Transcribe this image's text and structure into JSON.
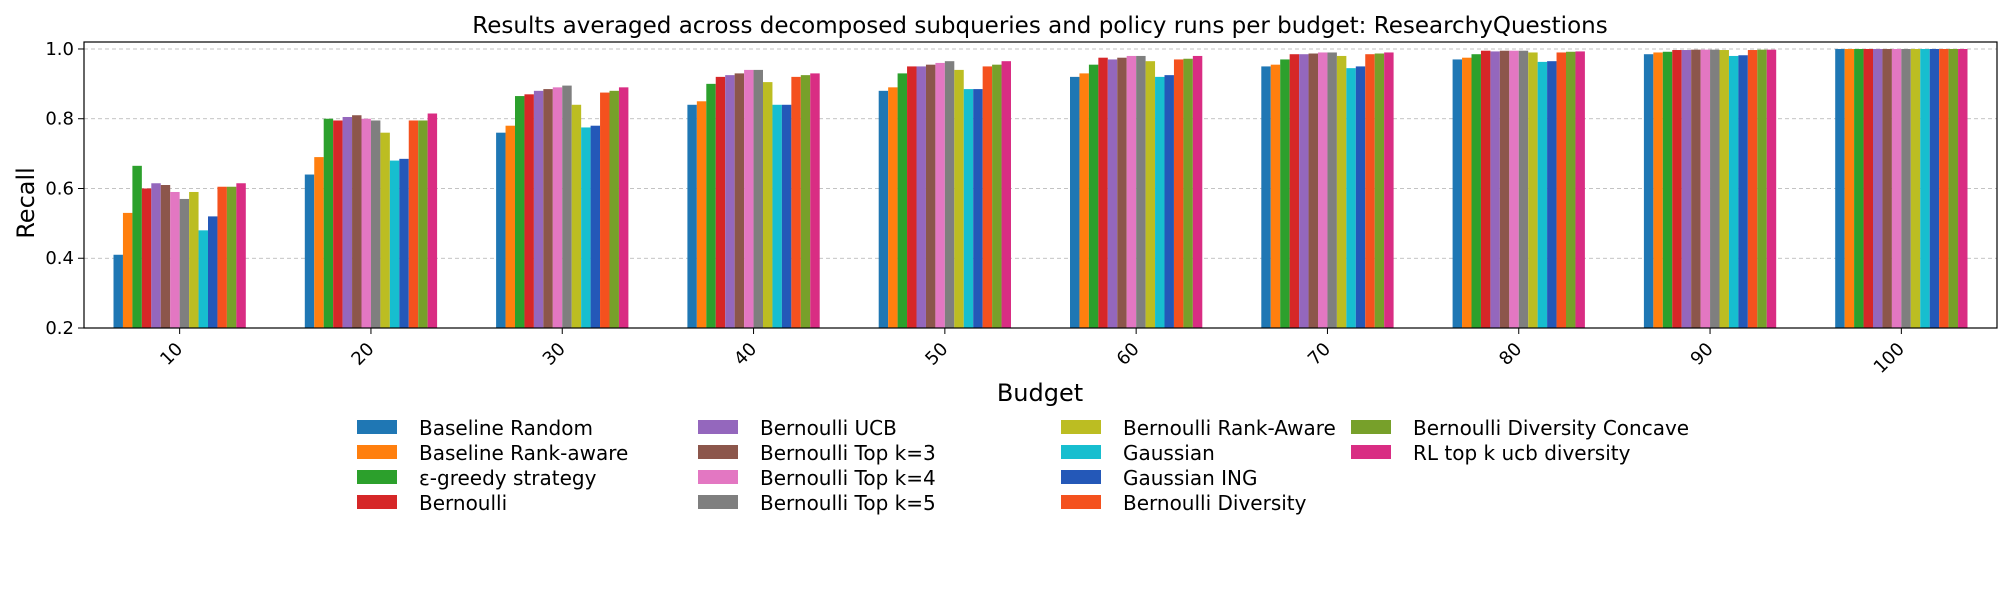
{
  "chart_data": {
    "type": "bar",
    "title": "Results averaged across decomposed subqueries and policy runs per budget: ResearchyQuestions",
    "xlabel": "Budget",
    "ylabel": "Recall",
    "ylim": [
      0.2,
      1.02
    ],
    "yticks": [
      "0.2",
      "0.4",
      "0.6",
      "0.8",
      "1.0"
    ],
    "grid": "horizontal dashed",
    "legend_position": "bottom",
    "categories": [
      "10",
      "20",
      "30",
      "40",
      "50",
      "60",
      "70",
      "80",
      "90",
      "100"
    ],
    "series": [
      {
        "name": "Baseline Random",
        "color": "#1f77b4",
        "values": [
          0.41,
          0.64,
          0.76,
          0.84,
          0.88,
          0.92,
          0.95,
          0.97,
          0.985,
          1.0
        ]
      },
      {
        "name": "Baseline Rank-aware",
        "color": "#ff7f0e",
        "values": [
          0.53,
          0.69,
          0.78,
          0.85,
          0.89,
          0.93,
          0.955,
          0.975,
          0.99,
          1.0
        ]
      },
      {
        "name": "ε-greedy strategy",
        "color": "#2ca02c",
        "values": [
          0.665,
          0.8,
          0.865,
          0.9,
          0.93,
          0.955,
          0.97,
          0.985,
          0.992,
          1.0
        ]
      },
      {
        "name": "Bernoulli",
        "color": "#d62728",
        "values": [
          0.6,
          0.795,
          0.87,
          0.92,
          0.95,
          0.975,
          0.985,
          0.995,
          0.997,
          1.0
        ]
      },
      {
        "name": "Bernoulli UCB",
        "color": "#9467bd",
        "values": [
          0.615,
          0.805,
          0.88,
          0.925,
          0.95,
          0.97,
          0.985,
          0.993,
          0.997,
          1.0
        ]
      },
      {
        "name": "Bernoulli Top k=3",
        "color": "#8c564b",
        "values": [
          0.61,
          0.81,
          0.885,
          0.93,
          0.955,
          0.975,
          0.987,
          0.995,
          0.998,
          1.0
        ]
      },
      {
        "name": "Bernoulli Top k=4",
        "color": "#e377c2",
        "values": [
          0.59,
          0.8,
          0.89,
          0.94,
          0.96,
          0.98,
          0.99,
          0.995,
          0.998,
          1.0
        ]
      },
      {
        "name": "Bernoulli Top k=5",
        "color": "#7f7f7f",
        "values": [
          0.57,
          0.795,
          0.895,
          0.94,
          0.965,
          0.98,
          0.99,
          0.995,
          0.998,
          1.0
        ]
      },
      {
        "name": "Bernoulli Rank-Aware",
        "color": "#bcbd22",
        "values": [
          0.59,
          0.76,
          0.84,
          0.905,
          0.94,
          0.965,
          0.98,
          0.99,
          0.997,
          1.0
        ]
      },
      {
        "name": "Gaussian",
        "color": "#17becf",
        "values": [
          0.48,
          0.68,
          0.775,
          0.84,
          0.885,
          0.92,
          0.945,
          0.963,
          0.98,
          1.0
        ]
      },
      {
        "name": "Gaussian ING",
        "color": "#2458b8",
        "values": [
          0.52,
          0.685,
          0.78,
          0.84,
          0.885,
          0.925,
          0.95,
          0.965,
          0.982,
          1.0
        ]
      },
      {
        "name": "Bernoulli Diversity",
        "color": "#f4511e",
        "values": [
          0.605,
          0.795,
          0.875,
          0.92,
          0.95,
          0.97,
          0.985,
          0.99,
          0.997,
          1.0
        ]
      },
      {
        "name": "Bernoulli Diversity Concave",
        "color": "#77a02a",
        "values": [
          0.605,
          0.795,
          0.88,
          0.925,
          0.955,
          0.972,
          0.987,
          0.992,
          0.998,
          1.0
        ]
      },
      {
        "name": "RL top k ucb diversity",
        "color": "#d92d83",
        "values": [
          0.615,
          0.815,
          0.89,
          0.93,
          0.965,
          0.98,
          0.99,
          0.993,
          0.998,
          1.0
        ]
      }
    ]
  }
}
